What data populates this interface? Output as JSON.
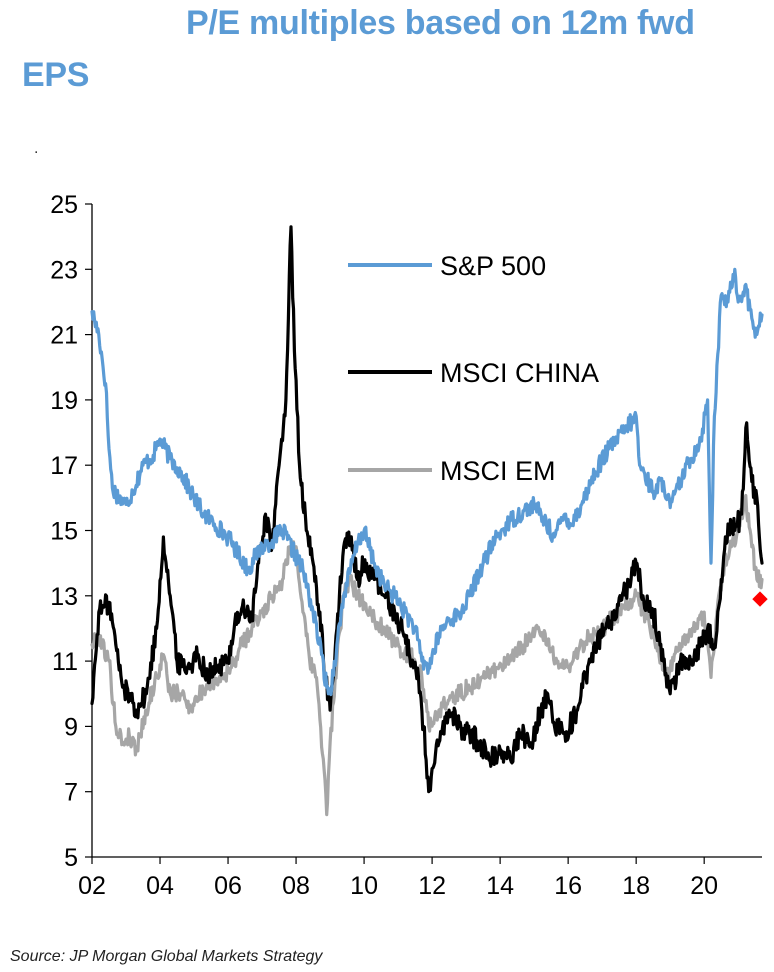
{
  "title_line1": "P/E multiples based on 12m fwd",
  "title_line2": "EPS",
  "stray_mark": ".",
  "source": "Source: JP Morgan Global Markets Strategy",
  "chart_data": {
    "type": "line",
    "title": "P/E multiples based on 12m fwd EPS",
    "xlabel": "",
    "ylabel": "",
    "xlim": [
      2002,
      2021.7
    ],
    "ylim": [
      5,
      25
    ],
    "yticks": [
      5,
      7,
      9,
      11,
      13,
      15,
      17,
      19,
      21,
      23,
      25
    ],
    "ytick_labels": [
      "5",
      "7",
      "9",
      "11",
      "13",
      "15",
      "17",
      "19",
      "21",
      "23",
      "25"
    ],
    "xticks": [
      2002,
      2004,
      2006,
      2008,
      2010,
      2012,
      2014,
      2016,
      2018,
      2020
    ],
    "xtick_labels": [
      "02",
      "04",
      "06",
      "08",
      "10",
      "12",
      "14",
      "16",
      "18",
      "20"
    ],
    "grid": false,
    "legend": "inline right of center",
    "series": [
      {
        "name": "S&P 500",
        "color": "#5b9bd5",
        "x": [
          2002.0,
          2002.2,
          2002.4,
          2002.5,
          2002.6,
          2002.8,
          2003.0,
          2003.2,
          2003.5,
          2003.8,
          2004.0,
          2004.3,
          2004.6,
          2005.0,
          2005.3,
          2005.6,
          2006.0,
          2006.3,
          2006.6,
          2006.8,
          2007.0,
          2007.3,
          2007.6,
          2007.9,
          2008.2,
          2008.5,
          2008.75,
          2008.9,
          2009.0,
          2009.2,
          2009.4,
          2009.6,
          2009.8,
          2010.0,
          2010.3,
          2010.6,
          2010.9,
          2011.2,
          2011.5,
          2011.7,
          2011.9,
          2012.2,
          2012.5,
          2012.8,
          2013.1,
          2013.5,
          2013.9,
          2014.3,
          2014.7,
          2015.0,
          2015.3,
          2015.6,
          2015.9,
          2016.1,
          2016.4,
          2016.8,
          2017.2,
          2017.6,
          2018.0,
          2018.1,
          2018.5,
          2018.8,
          2019.0,
          2019.3,
          2019.6,
          2019.9,
          2020.1,
          2020.2,
          2020.3,
          2020.5,
          2020.7,
          2020.9,
          2021.0,
          2021.2,
          2021.4,
          2021.55,
          2021.7
        ],
        "values": [
          21.7,
          21.0,
          19.5,
          17.5,
          16.3,
          16.0,
          15.8,
          16.2,
          17.0,
          17.3,
          17.8,
          17.2,
          16.8,
          16.0,
          15.5,
          15.2,
          14.8,
          14.3,
          13.8,
          14.2,
          14.5,
          14.7,
          15.0,
          14.4,
          13.8,
          12.5,
          11.2,
          10.2,
          10.0,
          11.5,
          13.0,
          13.8,
          14.6,
          15.0,
          14.0,
          13.3,
          13.0,
          12.5,
          12.0,
          11.0,
          10.8,
          11.8,
          12.3,
          12.4,
          13.0,
          14.0,
          14.8,
          15.3,
          15.6,
          15.8,
          15.3,
          14.8,
          15.5,
          15.2,
          15.8,
          16.8,
          17.5,
          18.0,
          18.5,
          17.0,
          16.2,
          16.5,
          15.7,
          16.5,
          17.2,
          17.8,
          19.0,
          14.0,
          18.5,
          22.2,
          22.0,
          23.0,
          22.0,
          22.5,
          21.5,
          21.0,
          21.6
        ]
      },
      {
        "name": "MSCI CHINA",
        "color": "#000000",
        "x": [
          2002.0,
          2002.2,
          2002.5,
          2002.7,
          2002.9,
          2003.1,
          2003.3,
          2003.6,
          2003.9,
          2004.1,
          2004.3,
          2004.5,
          2004.8,
          2005.1,
          2005.4,
          2005.7,
          2006.0,
          2006.2,
          2006.4,
          2006.7,
          2006.9,
          2007.1,
          2007.3,
          2007.5,
          2007.7,
          2007.85,
          2007.95,
          2008.1,
          2008.3,
          2008.5,
          2008.7,
          2008.85,
          2009.0,
          2009.2,
          2009.4,
          2009.6,
          2009.8,
          2010.0,
          2010.3,
          2010.6,
          2010.9,
          2011.2,
          2011.4,
          2011.6,
          2011.75,
          2011.9,
          2012.2,
          2012.5,
          2012.8,
          2013.1,
          2013.4,
          2013.7,
          2014.0,
          2014.3,
          2014.6,
          2014.9,
          2015.2,
          2015.4,
          2015.6,
          2015.9,
          2016.2,
          2016.5,
          2016.8,
          2017.1,
          2017.4,
          2017.7,
          2018.0,
          2018.2,
          2018.5,
          2018.8,
          2019.0,
          2019.3,
          2019.6,
          2019.9,
          2020.1,
          2020.3,
          2020.5,
          2020.7,
          2020.9,
          2021.1,
          2021.25,
          2021.4,
          2021.55,
          2021.7
        ],
        "values": [
          9.7,
          12.5,
          12.8,
          11.5,
          10.2,
          10.0,
          9.5,
          10.0,
          12.0,
          14.8,
          13.0,
          11.0,
          10.8,
          11.2,
          10.6,
          10.8,
          11.0,
          12.2,
          12.6,
          12.3,
          14.0,
          15.5,
          14.5,
          17.0,
          19.0,
          24.3,
          20.5,
          17.0,
          15.0,
          14.0,
          12.5,
          10.5,
          9.5,
          12.0,
          14.5,
          14.8,
          13.5,
          14.0,
          13.5,
          13.0,
          12.5,
          11.8,
          11.0,
          10.5,
          9.0,
          7.0,
          8.5,
          9.5,
          9.0,
          8.8,
          8.5,
          8.0,
          8.3,
          8.0,
          8.8,
          8.5,
          9.5,
          10.0,
          9.0,
          8.8,
          9.3,
          10.5,
          11.5,
          12.0,
          12.3,
          13.2,
          14.0,
          13.0,
          12.5,
          11.0,
          10.0,
          11.0,
          11.0,
          11.5,
          12.0,
          11.5,
          13.5,
          15.2,
          15.0,
          15.5,
          18.3,
          16.5,
          16.0,
          14.0
        ]
      },
      {
        "name": "MSCI EM",
        "color": "#a6a6a6",
        "x": [
          2002.0,
          2002.2,
          2002.5,
          2002.7,
          2002.9,
          2003.1,
          2003.3,
          2003.6,
          2003.9,
          2004.1,
          2004.3,
          2004.6,
          2004.9,
          2005.2,
          2005.5,
          2005.8,
          2006.1,
          2006.4,
          2006.7,
          2007.0,
          2007.3,
          2007.6,
          2007.8,
          2008.0,
          2008.2,
          2008.4,
          2008.6,
          2008.8,
          2008.9,
          2009.0,
          2009.2,
          2009.4,
          2009.6,
          2009.8,
          2010.0,
          2010.3,
          2010.6,
          2010.9,
          2011.2,
          2011.5,
          2011.7,
          2011.9,
          2012.2,
          2012.5,
          2012.8,
          2013.1,
          2013.5,
          2013.9,
          2014.3,
          2014.7,
          2015.1,
          2015.4,
          2015.7,
          2016.0,
          2016.3,
          2016.6,
          2016.9,
          2017.2,
          2017.5,
          2017.8,
          2018.0,
          2018.3,
          2018.6,
          2018.9,
          2019.2,
          2019.5,
          2019.8,
          2020.0,
          2020.2,
          2020.4,
          2020.6,
          2020.8,
          2021.0,
          2021.2,
          2021.4,
          2021.55,
          2021.7
        ],
        "values": [
          11.5,
          11.8,
          11.0,
          9.0,
          8.5,
          8.7,
          8.3,
          9.5,
          10.5,
          11.2,
          10.0,
          10.0,
          9.6,
          10.0,
          10.4,
          10.5,
          10.8,
          11.5,
          12.0,
          12.5,
          13.0,
          13.5,
          14.5,
          14.5,
          12.5,
          11.0,
          10.5,
          8.0,
          6.3,
          8.5,
          11.0,
          13.0,
          13.5,
          13.0,
          12.8,
          12.3,
          12.0,
          11.5,
          11.3,
          11.0,
          10.5,
          9.0,
          9.5,
          9.8,
          10.0,
          10.2,
          10.5,
          10.8,
          11.0,
          11.5,
          12.0,
          11.5,
          11.0,
          10.8,
          11.3,
          11.8,
          11.8,
          12.2,
          12.5,
          12.8,
          13.0,
          12.3,
          11.5,
          10.5,
          11.3,
          11.8,
          12.0,
          12.5,
          10.5,
          12.8,
          14.0,
          14.5,
          15.0,
          16.0,
          14.5,
          13.5,
          13.5
        ]
      }
    ],
    "annotations": [
      {
        "type": "marker",
        "shape": "diamond",
        "color": "#ff0000",
        "x": 2021.7,
        "y": 12.9
      }
    ]
  }
}
